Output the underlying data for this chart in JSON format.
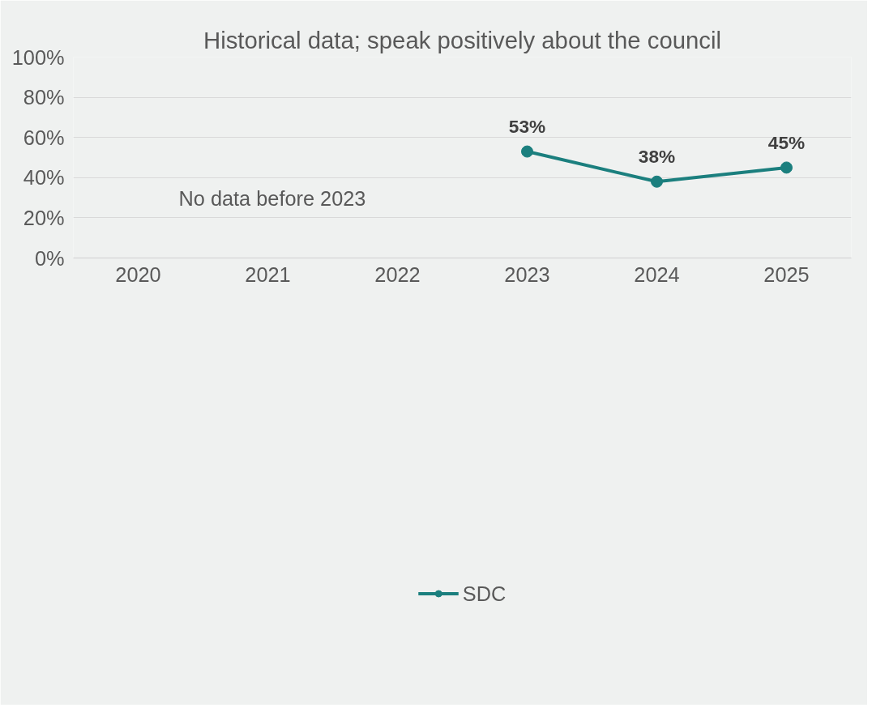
{
  "chart_data": {
    "type": "line",
    "title": "Historical data; speak positively about the council",
    "categories": [
      "2020",
      "2021",
      "2022",
      "2023",
      "2024",
      "2025"
    ],
    "series": [
      {
        "name": "SDC",
        "color": "#1b7f7e",
        "values": [
          null,
          null,
          null,
          53,
          38,
          45
        ]
      }
    ],
    "ylim": [
      0,
      100
    ],
    "yticks": [
      {
        "value": 0,
        "label": "0%"
      },
      {
        "value": 20,
        "label": "20%"
      },
      {
        "value": 40,
        "label": "40%"
      },
      {
        "value": 60,
        "label": "60%"
      },
      {
        "value": 80,
        "label": "80%"
      },
      {
        "value": 100,
        "label": "100%"
      }
    ],
    "value_labels": [
      null,
      null,
      null,
      "53%",
      "38%",
      "45%"
    ],
    "annotations": [
      "No data before 2023"
    ],
    "grid": "y",
    "legend": "bottom",
    "marker": "circle",
    "line_style": "solid"
  }
}
